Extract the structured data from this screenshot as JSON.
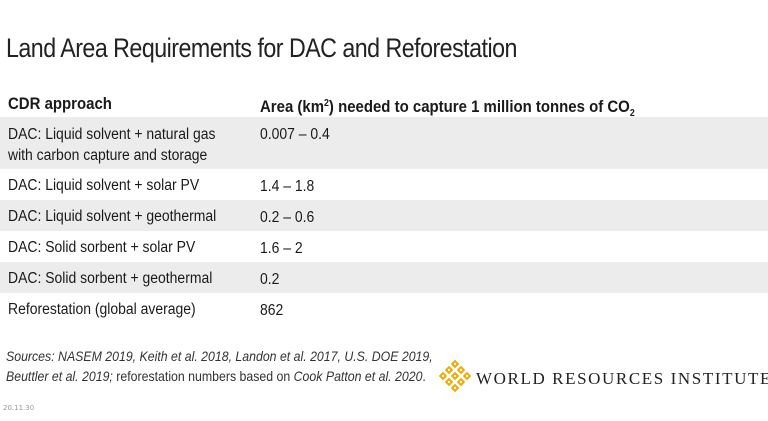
{
  "title": "Land Area Requirements for DAC and Reforestation",
  "table": {
    "header": {
      "approach": "CDR approach",
      "area_prefix": "Area (km",
      "area_sup": "2",
      "area_middle": ") needed to capture 1 million tonnes of CO",
      "area_sub": "2"
    },
    "rows": [
      {
        "line1": "DAC: Liquid solvent + natural gas",
        "line2": "with carbon capture and storage",
        "value": "0.007 – 0.4"
      },
      {
        "approach": "DAC: Liquid solvent + solar PV",
        "value": "1.4 – 1.8"
      },
      {
        "approach": "DAC: Liquid solvent + geothermal",
        "value": "0.2 – 0.6"
      },
      {
        "approach": "DAC: Solid sorbent + solar PV",
        "value": "1.6 – 2"
      },
      {
        "approach": "DAC: Solid sorbent + geothermal",
        "value": "0.2"
      },
      {
        "approach": "Reforestation (global average)",
        "value": "862"
      }
    ]
  },
  "sources": {
    "line1": "Sources: NASEM 2019, Keith et al. 2018, Landon et al. 2017, U.S. DOE 2019,",
    "line2_italic": "Beuttler et al. 2019;",
    "line2_plain": " reforestation numbers based on ",
    "line2_italic2": "Cook Patton et al. 2020",
    "line2_end": "."
  },
  "code": "20.11.30",
  "organization": "WORLD RESOURCES INSTITUTE",
  "colors": {
    "logo": "#f2a900",
    "row_shade": "#ececec",
    "text": "#1a1a1a"
  },
  "icons": {
    "logo": "wri-lattice-logo-icon"
  }
}
